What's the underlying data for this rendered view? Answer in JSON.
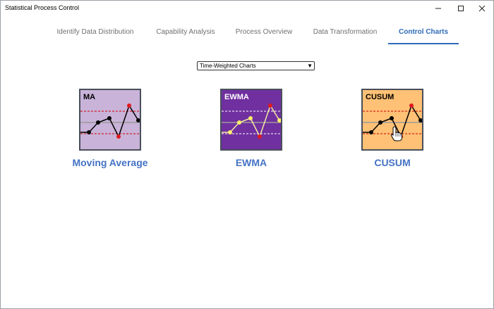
{
  "window": {
    "title": "Statistical Process Control",
    "minimize_icon": "minimize-icon",
    "maximize_icon": "maximize-icon",
    "close_icon": "close-icon"
  },
  "tabs": [
    {
      "label": "Identify Data Distribution",
      "active": false
    },
    {
      "label": "Capability Analysis",
      "active": false
    },
    {
      "label": "Process Overview",
      "active": false
    },
    {
      "label": "Data Transformation",
      "active": false
    },
    {
      "label": "Control Charts",
      "active": true
    }
  ],
  "chart_type_select": {
    "selected": "Time-Weighted Charts"
  },
  "charts": [
    {
      "label": "MA",
      "caption": "Moving Average",
      "bg": "#c9b3d9",
      "label_color": "#000000",
      "line_color": "#000000",
      "point_color": "#000000",
      "highlight_color": "#e0191f",
      "limit_color": "#cc0000"
    },
    {
      "label": "EWMA",
      "caption": "EWMA",
      "bg": "#7030a0",
      "label_color": "#ffffff",
      "line_color": "#f3e9a0",
      "point_color": "#fff06b",
      "highlight_color": "#e0191f",
      "limit_color": "#ffffff"
    },
    {
      "label": "CUSUM",
      "caption": "CUSUM",
      "bg": "#ffc175",
      "label_color": "#000000",
      "line_color": "#000000",
      "point_color": "#000000",
      "highlight_color": "#e0191f",
      "limit_color": "#cc0000"
    }
  ],
  "colors": {
    "accent": "#2e6bb8",
    "caption": "#4472c4",
    "tab_inactive": "#707070"
  }
}
